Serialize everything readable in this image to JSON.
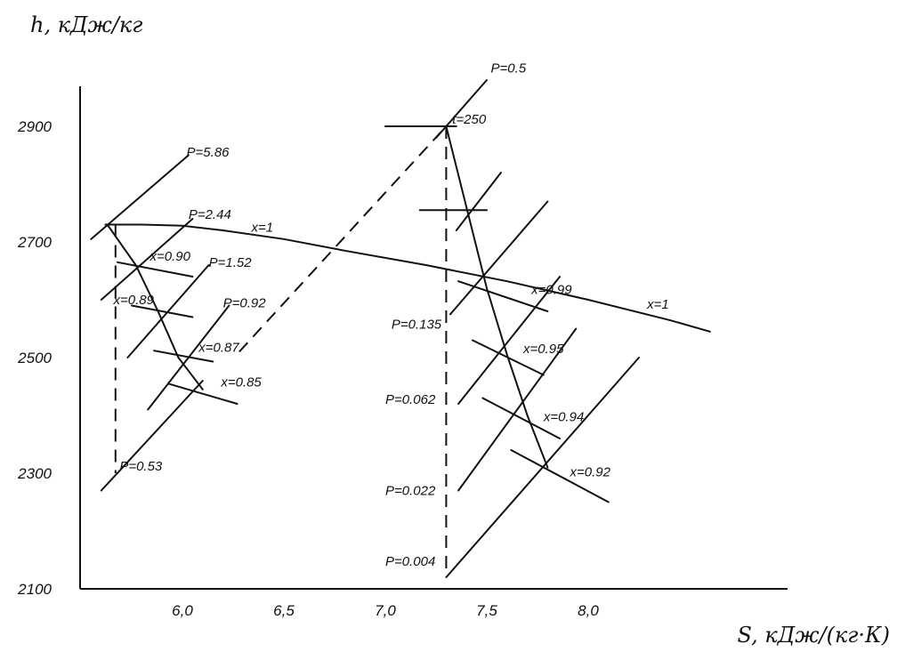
{
  "chart_data": {
    "type": "line",
    "title": "",
    "ylabel": "h, кДж/кг",
    "xlabel": "S, кДж/(кг·К)",
    "xlim": [
      5.5,
      9.0
    ],
    "ylim": [
      2100,
      3050
    ],
    "x_ticks": [
      {
        "value": 6.0,
        "label": "6,0"
      },
      {
        "value": 6.5,
        "label": "6,5"
      },
      {
        "value": 7.0,
        "label": "7,0"
      },
      {
        "value": 7.5,
        "label": "7,5"
      },
      {
        "value": 8.0,
        "label": "8,0"
      }
    ],
    "y_ticks": [
      {
        "value": 2100,
        "label": "2100"
      },
      {
        "value": 2300,
        "label": "2300"
      },
      {
        "value": 2500,
        "label": "2500"
      },
      {
        "value": 2700,
        "label": "2700"
      },
      {
        "value": 2900,
        "label": "2900"
      }
    ],
    "grid": false,
    "lines": [
      {
        "name": "saturation-curve-x1",
        "style": "solid",
        "points": [
          [
            5.62,
            2730
          ],
          [
            5.8,
            2730
          ],
          [
            6.0,
            2728
          ],
          [
            6.2,
            2720
          ],
          [
            6.5,
            2705
          ],
          [
            6.8,
            2685
          ],
          [
            7.2,
            2660
          ],
          [
            7.6,
            2632
          ],
          [
            8.0,
            2600
          ],
          [
            8.4,
            2565
          ],
          [
            8.6,
            2545
          ]
        ]
      },
      {
        "name": "expansion-left",
        "style": "solid",
        "points": [
          [
            5.63,
            2730
          ],
          [
            5.77,
            2660
          ],
          [
            5.88,
            2580
          ],
          [
            5.98,
            2500
          ],
          [
            6.1,
            2445
          ]
        ]
      },
      {
        "name": "expansion-right",
        "style": "solid",
        "points": [
          [
            7.3,
            2900
          ],
          [
            7.5,
            2620
          ],
          [
            7.6,
            2505
          ],
          [
            7.7,
            2400
          ],
          [
            7.8,
            2310
          ]
        ]
      },
      {
        "name": "dashed-vertical-left",
        "style": "dashed",
        "points": [
          [
            5.67,
            2730
          ],
          [
            5.67,
            2300
          ]
        ]
      },
      {
        "name": "dashed-vertical-right",
        "style": "dashed",
        "points": [
          [
            7.3,
            2900
          ],
          [
            7.3,
            2130
          ]
        ]
      },
      {
        "name": "dashed-connector",
        "style": "dashed",
        "points": [
          [
            6.28,
            2510
          ],
          [
            7.3,
            2900
          ]
        ]
      },
      {
        "name": "isobar-P5.86",
        "style": "solid",
        "points": [
          [
            5.55,
            2705
          ],
          [
            6.03,
            2850
          ]
        ]
      },
      {
        "name": "isobar-P2.44",
        "style": "solid",
        "points": [
          [
            5.6,
            2600
          ],
          [
            6.05,
            2740
          ]
        ]
      },
      {
        "name": "isobar-P1.52",
        "style": "solid",
        "points": [
          [
            5.73,
            2500
          ],
          [
            6.13,
            2660
          ]
        ]
      },
      {
        "name": "isobar-P0.92",
        "style": "solid",
        "points": [
          [
            5.83,
            2410
          ],
          [
            6.23,
            2590
          ]
        ]
      },
      {
        "name": "isobar-P0.53",
        "style": "solid",
        "points": [
          [
            5.6,
            2270
          ],
          [
            6.1,
            2460
          ]
        ]
      },
      {
        "name": "isobar-P0.5",
        "style": "solid",
        "points": [
          [
            7.25,
            2880
          ],
          [
            7.5,
            2980
          ]
        ]
      },
      {
        "name": "isobar-upper-mid",
        "style": "solid",
        "points": [
          [
            7.35,
            2720
          ],
          [
            7.57,
            2820
          ]
        ]
      },
      {
        "name": "isobar-P0.135",
        "style": "solid",
        "points": [
          [
            7.32,
            2575
          ],
          [
            7.8,
            2770
          ]
        ]
      },
      {
        "name": "isobar-P0.062",
        "style": "solid",
        "points": [
          [
            7.36,
            2420
          ],
          [
            7.86,
            2640
          ]
        ]
      },
      {
        "name": "isobar-P0.022",
        "style": "solid",
        "points": [
          [
            7.36,
            2270
          ],
          [
            7.94,
            2550
          ]
        ]
      },
      {
        "name": "isobar-P0.004",
        "style": "solid",
        "points": [
          [
            7.3,
            2120
          ],
          [
            8.25,
            2500
          ]
        ]
      },
      {
        "name": "isotherm-t250",
        "style": "solid",
        "points": [
          [
            7.0,
            2900
          ],
          [
            7.35,
            2900
          ]
        ]
      },
      {
        "name": "hline-upper-mid",
        "style": "solid",
        "points": [
          [
            7.17,
            2755
          ],
          [
            7.5,
            2755
          ]
        ]
      },
      {
        "name": "dryness-x0.90",
        "style": "solid",
        "points": [
          [
            5.68,
            2665
          ],
          [
            6.05,
            2640
          ]
        ]
      },
      {
        "name": "dryness-x0.89",
        "style": "solid",
        "points": [
          [
            5.75,
            2590
          ],
          [
            6.05,
            2570
          ]
        ]
      },
      {
        "name": "dryness-x0.87",
        "style": "solid",
        "points": [
          [
            5.86,
            2512
          ],
          [
            6.15,
            2493
          ]
        ]
      },
      {
        "name": "dryness-x0.85",
        "style": "solid",
        "points": [
          [
            5.93,
            2455
          ],
          [
            6.27,
            2420
          ]
        ]
      },
      {
        "name": "dryness-x0.99",
        "style": "solid",
        "points": [
          [
            7.36,
            2632
          ],
          [
            7.8,
            2580
          ]
        ]
      },
      {
        "name": "dryness-x0.95",
        "style": "solid",
        "points": [
          [
            7.43,
            2530
          ],
          [
            7.78,
            2470
          ]
        ]
      },
      {
        "name": "dryness-x0.94",
        "style": "solid",
        "points": [
          [
            7.48,
            2430
          ],
          [
            7.86,
            2360
          ]
        ]
      },
      {
        "name": "dryness-x0.92",
        "style": "solid",
        "points": [
          [
            7.62,
            2340
          ],
          [
            8.1,
            2250
          ]
        ]
      }
    ],
    "annotations": [
      {
        "text": "P=5.86",
        "x": 6.02,
        "y": 2848
      },
      {
        "text": "P=2.44",
        "x": 6.03,
        "y": 2740
      },
      {
        "text": "x=1",
        "x": 6.34,
        "y": 2718
      },
      {
        "text": "x=0.90",
        "x": 5.84,
        "y": 2668
      },
      {
        "text": "P=1.52",
        "x": 6.13,
        "y": 2657
      },
      {
        "text": "x=0.89",
        "x": 5.66,
        "y": 2592
      },
      {
        "text": "P=0.92",
        "x": 6.2,
        "y": 2587
      },
      {
        "text": "x=0.87",
        "x": 6.08,
        "y": 2510
      },
      {
        "text": "x=0.85",
        "x": 6.19,
        "y": 2450
      },
      {
        "text": "P=0.53",
        "x": 5.69,
        "y": 2305
      },
      {
        "text": "P=0.5",
        "x": 7.52,
        "y": 2993
      },
      {
        "text": "t=250",
        "x": 7.33,
        "y": 2905
      },
      {
        "text": "x=0.99",
        "x": 7.72,
        "y": 2610
      },
      {
        "text": "x=1",
        "x": 8.29,
        "y": 2585
      },
      {
        "text": "P=0.135",
        "x": 7.03,
        "y": 2550
      },
      {
        "text": "x=0.95",
        "x": 7.68,
        "y": 2508
      },
      {
        "text": "P=0.062",
        "x": 7.0,
        "y": 2420
      },
      {
        "text": "x=0.94",
        "x": 7.78,
        "y": 2390
      },
      {
        "text": "x=0.92",
        "x": 7.91,
        "y": 2295
      },
      {
        "text": "P=0.022",
        "x": 7.0,
        "y": 2262
      },
      {
        "text": "P=0.004",
        "x": 7.0,
        "y": 2140
      }
    ]
  }
}
